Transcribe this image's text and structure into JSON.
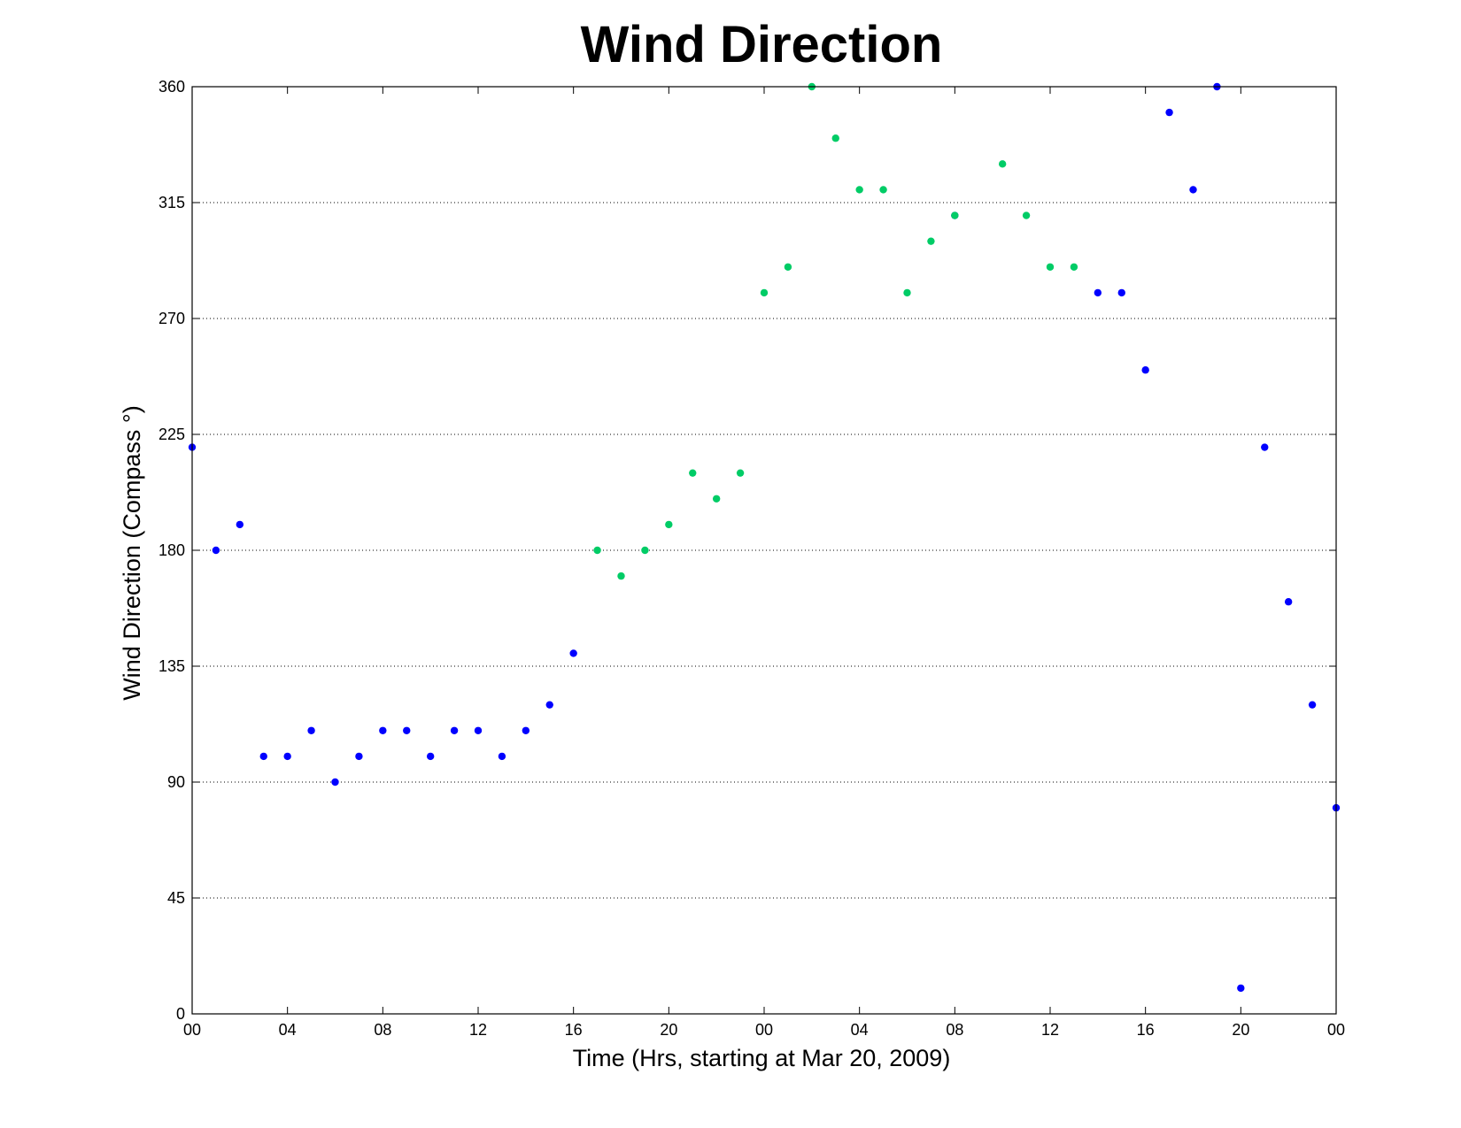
{
  "chart_data": {
    "type": "scatter",
    "title": "Wind Direction",
    "xlabel": "Time (Hrs, starting at Mar 20, 2009)",
    "ylabel": "Wind Direction (Compass °)",
    "x_unit": "hours",
    "xlim": [
      0,
      48
    ],
    "ylim": [
      0,
      360
    ],
    "x_ticks": [
      0,
      4,
      8,
      12,
      16,
      20,
      24,
      28,
      32,
      36,
      40,
      44,
      48
    ],
    "x_tick_labels": [
      "00",
      "04",
      "08",
      "12",
      "16",
      "20",
      "00",
      "04",
      "08",
      "12",
      "16",
      "20",
      "00"
    ],
    "y_ticks": [
      0,
      45,
      90,
      135,
      180,
      225,
      270,
      315,
      360
    ],
    "y_tick_labels": [
      "0",
      "45",
      "90",
      "135",
      "180",
      "225",
      "270",
      "315",
      "360"
    ],
    "grid": "horizontal-dotted",
    "series": [
      {
        "color": "#0000ff",
        "x": [
          0,
          1,
          2,
          3,
          4,
          5,
          6,
          7,
          8,
          9,
          10,
          11,
          12,
          13,
          14,
          15,
          16,
          32,
          38,
          39,
          40,
          41,
          42,
          43,
          44,
          45,
          46,
          47,
          48
        ],
        "y": [
          220,
          180,
          190,
          100,
          100,
          110,
          90,
          100,
          110,
          110,
          100,
          110,
          110,
          100,
          110,
          120,
          140,
          310,
          280,
          280,
          250,
          350,
          320,
          360,
          10,
          220,
          160,
          120,
          80
        ]
      },
      {
        "color": "#00cc66",
        "x": [
          17,
          18,
          19,
          20,
          21,
          22,
          23,
          24,
          25,
          26,
          27,
          28,
          29,
          30,
          31,
          32,
          34,
          35,
          36,
          37
        ],
        "y": [
          180,
          170,
          180,
          190,
          210,
          200,
          210,
          280,
          290,
          360,
          340,
          320,
          320,
          280,
          300,
          310,
          330,
          310,
          290,
          290
        ]
      }
    ]
  }
}
